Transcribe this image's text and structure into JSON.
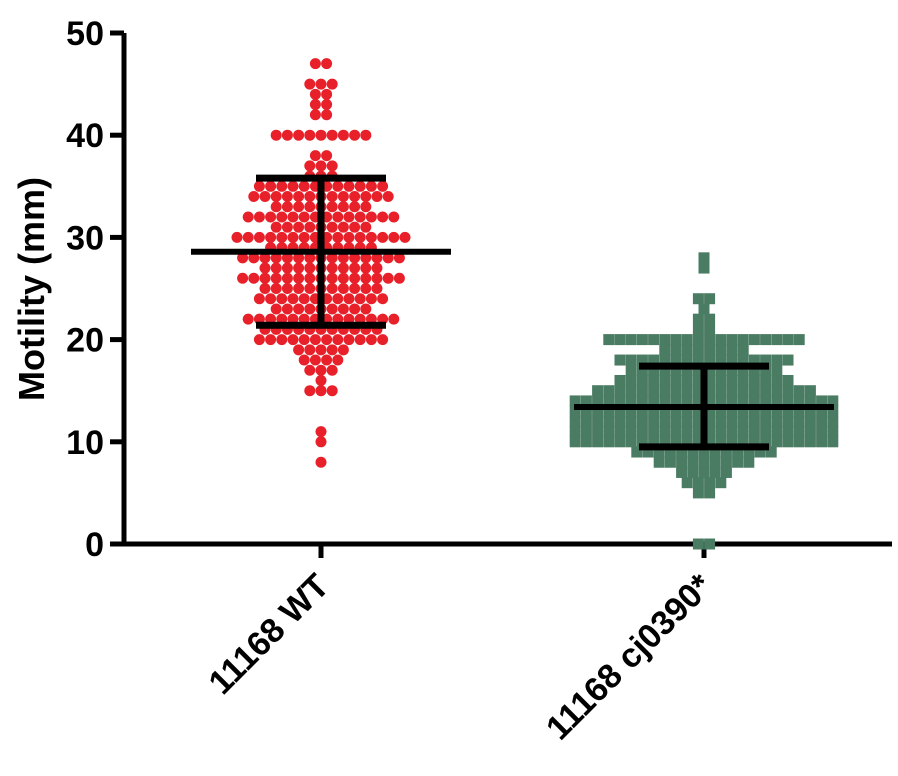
{
  "chart_data": {
    "type": "scatter",
    "subtype": "dot-plot-with-mean-and-sd",
    "ylabel": "Motility (mm)",
    "ylim": [
      0,
      50
    ],
    "yticks": [
      "0",
      "10",
      "20",
      "30",
      "40",
      "50"
    ],
    "categories": [
      "11168 WT",
      "11168 cj0390*"
    ],
    "series": [
      {
        "category": "11168 WT",
        "color": "#e8202a",
        "marker": "circle",
        "summary": {
          "mean": 28.6,
          "sd_low": 21.4,
          "sd_high": 35.8
        },
        "counts": [
          [
            8,
            1
          ],
          [
            10,
            1
          ],
          [
            11,
            1
          ],
          [
            15,
            3
          ],
          [
            16,
            1
          ],
          [
            17,
            3
          ],
          [
            18,
            4
          ],
          [
            19,
            5
          ],
          [
            20,
            12
          ],
          [
            21,
            11
          ],
          [
            22,
            14
          ],
          [
            23,
            9
          ],
          [
            24,
            12
          ],
          [
            25,
            11
          ],
          [
            26,
            15
          ],
          [
            27,
            11
          ],
          [
            28,
            15
          ],
          [
            29,
            10
          ],
          [
            30,
            16
          ],
          [
            31,
            9
          ],
          [
            32,
            14
          ],
          [
            33,
            9
          ],
          [
            34,
            13
          ],
          [
            35,
            12
          ],
          [
            36,
            3
          ],
          [
            37,
            3
          ],
          [
            38,
            2
          ],
          [
            40,
            9
          ],
          [
            42,
            2
          ],
          [
            43,
            2
          ],
          [
            44,
            2
          ],
          [
            45,
            3
          ],
          [
            47,
            2
          ]
        ]
      },
      {
        "category": "11168 cj0390*",
        "color": "#4a7c63",
        "marker": "square",
        "summary": {
          "mean": 13.4,
          "sd_low": 9.5,
          "sd_high": 17.4
        },
        "counts": [
          [
            0,
            2
          ],
          [
            5,
            2
          ],
          [
            6,
            4
          ],
          [
            7,
            5
          ],
          [
            8,
            9
          ],
          [
            9,
            13
          ],
          [
            10,
            24
          ],
          [
            11,
            24
          ],
          [
            12,
            24
          ],
          [
            13,
            24
          ],
          [
            14,
            24
          ],
          [
            15,
            20
          ],
          [
            16,
            16
          ],
          [
            17,
            14
          ],
          [
            18,
            16
          ],
          [
            19,
            8
          ],
          [
            20,
            18
          ],
          [
            21,
            2
          ],
          [
            22,
            2
          ],
          [
            23,
            1
          ],
          [
            24,
            2
          ],
          [
            27,
            1
          ],
          [
            28,
            1
          ]
        ]
      }
    ]
  }
}
